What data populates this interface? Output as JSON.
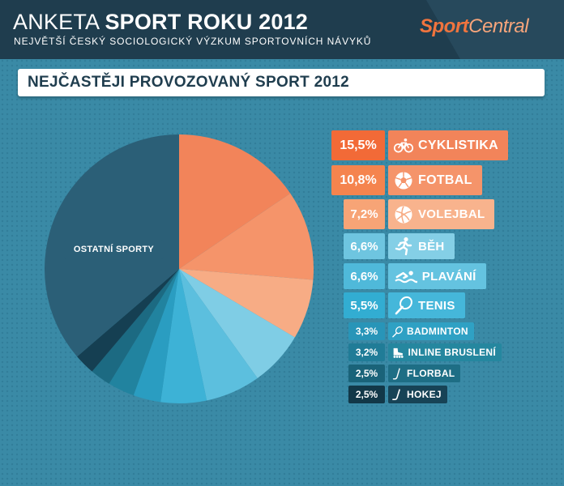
{
  "header": {
    "title_light": "ANKETA",
    "title_bold": "SPORT ROKU 2012",
    "subtitle": "NEJVĚTŠÍ ČESKÝ SOCIOLOGICKÝ VÝZKUM SPORTOVNÍCH NÁVYKŮ",
    "logo_part1": "Sport",
    "logo_part2": "Central"
  },
  "chart_data": {
    "type": "pie",
    "title": "NEJČASTĚJI PROVOZOVANÝ SPORT 2012",
    "other_label": "OSTATNÍ SPORTY",
    "slices": [
      {
        "label": "CYKLISTIKA",
        "pct_label": "15,5%",
        "value": 15.5,
        "color": "#f2845a",
        "icon": "bicycle-icon"
      },
      {
        "label": "FOTBAL",
        "pct_label": "10,8%",
        "value": 10.8,
        "color": "#f5946a",
        "icon": "soccer-ball-icon"
      },
      {
        "label": "VOLEJBAL",
        "pct_label": "7,2%",
        "value": 7.2,
        "color": "#f7ac85",
        "icon": "volleyball-icon"
      },
      {
        "label": "BĚH",
        "pct_label": "6,6%",
        "value": 6.6,
        "color": "#7fcde5",
        "icon": "runner-icon"
      },
      {
        "label": "PLAVÁNÍ",
        "pct_label": "6,6%",
        "value": 6.6,
        "color": "#5cbfde",
        "icon": "swimmer-icon"
      },
      {
        "label": "TENIS",
        "pct_label": "5,5%",
        "value": 5.5,
        "color": "#3db2d6",
        "icon": "tennis-racket-icon"
      },
      {
        "label": "BADMINTON",
        "pct_label": "3,3%",
        "value": 3.3,
        "color": "#2a9dc1",
        "icon": "badminton-racket-icon"
      },
      {
        "label": "INLINE BRUSLENÍ",
        "pct_label": "3,2%",
        "value": 3.2,
        "color": "#21839f",
        "icon": "inline-skate-icon"
      },
      {
        "label": "FLORBAL",
        "pct_label": "2,5%",
        "value": 2.5,
        "color": "#1c6a82",
        "icon": "floorball-stick-icon"
      },
      {
        "label": "HOKEJ",
        "pct_label": "2,5%",
        "value": 2.5,
        "color": "#153f52",
        "icon": "hockey-stick-icon"
      },
      {
        "label": "OSTATNÍ SPORTY",
        "value": 36.3,
        "color": "#2b5f77"
      }
    ]
  }
}
